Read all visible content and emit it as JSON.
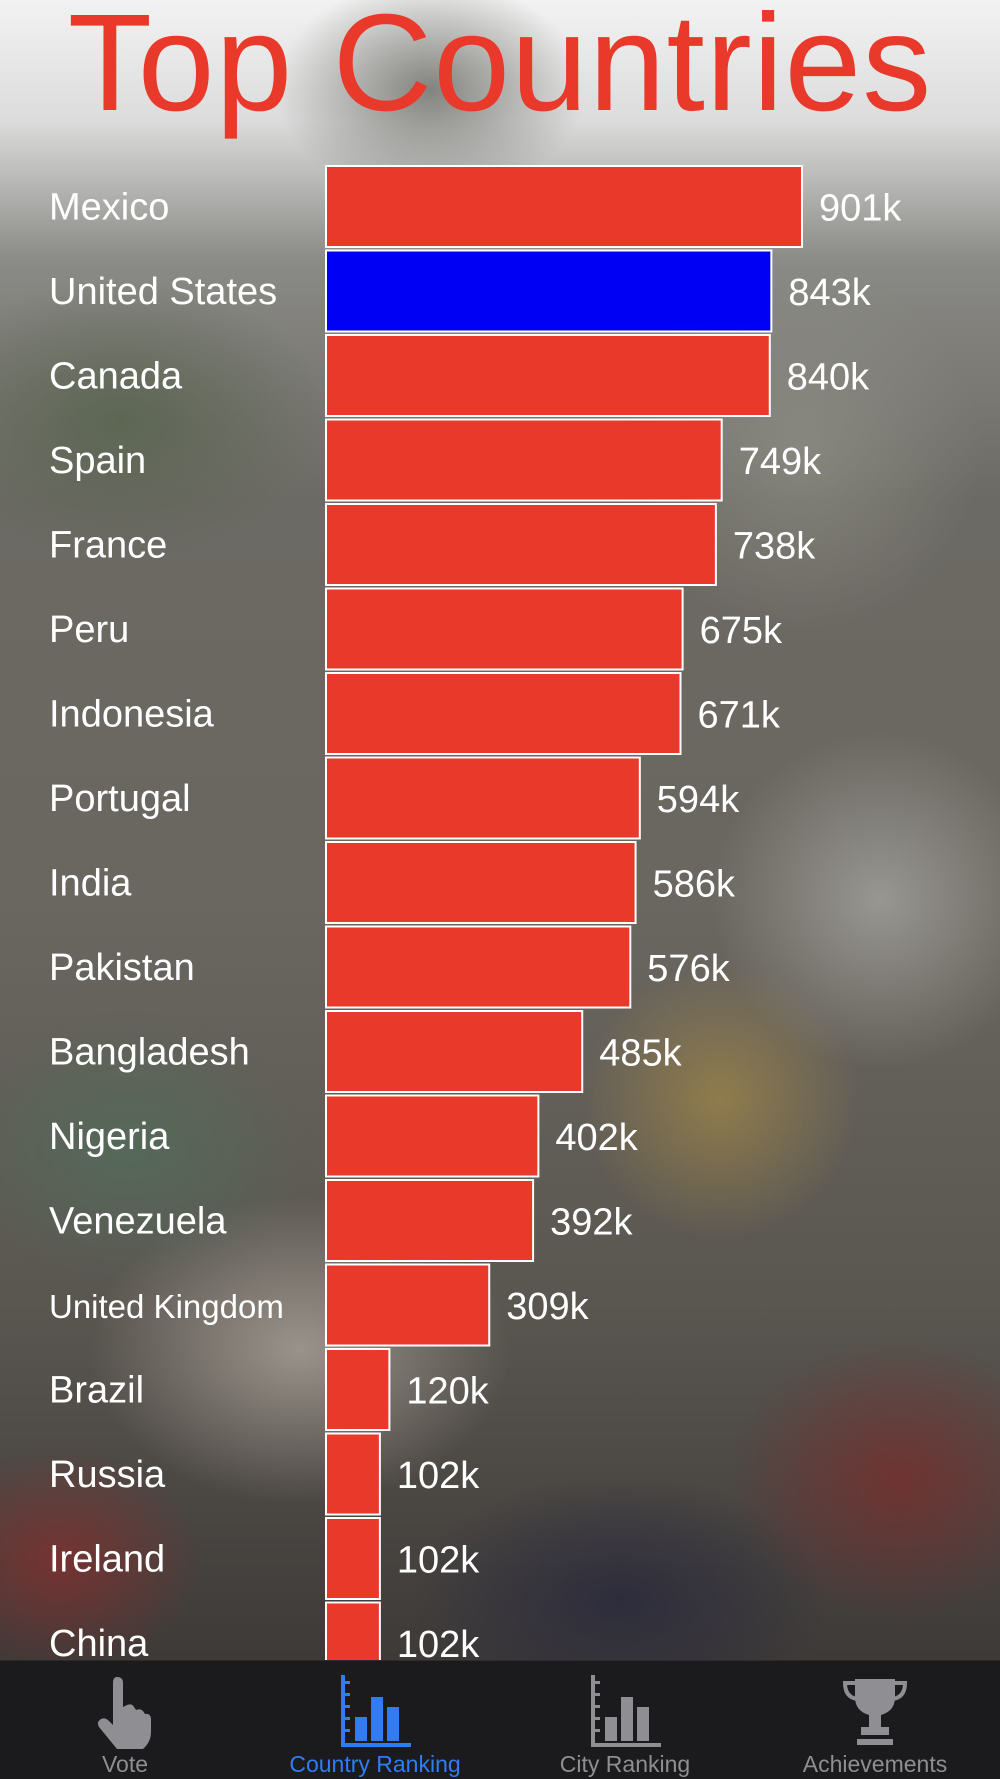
{
  "chart_data": {
    "type": "bar",
    "orientation": "horizontal",
    "title": "Top Countries",
    "categories": [
      "Mexico",
      "United States",
      "Canada",
      "Spain",
      "France",
      "Peru",
      "Indonesia",
      "Portugal",
      "India",
      "Pakistan",
      "Bangladesh",
      "Nigeria",
      "Venezuela",
      "United Kingdom",
      "Brazil",
      "Russia",
      "Ireland",
      "China"
    ],
    "values": [
      901000,
      843000,
      840000,
      749000,
      738000,
      675000,
      671000,
      594000,
      586000,
      576000,
      485000,
      402000,
      392000,
      309000,
      120000,
      102000,
      102000,
      102000
    ],
    "value_labels": [
      "901k",
      "843k",
      "840k",
      "749k",
      "738k",
      "675k",
      "671k",
      "594k",
      "586k",
      "576k",
      "485k",
      "402k",
      "392k",
      "309k",
      "120k",
      "102k",
      "102k",
      "102k"
    ],
    "highlight_category": "United States",
    "colors": {
      "bar": "#e8392a",
      "highlight": "#0000f5",
      "title": "#e8392a",
      "bar_border": "#ffffff"
    },
    "xlim": [
      0,
      901000
    ],
    "grid": false
  },
  "tabbar": {
    "tabs": [
      {
        "label": "Vote",
        "icon": "pointing-hand-icon",
        "active": false
      },
      {
        "label": "Country Ranking",
        "icon": "bar-chart-icon",
        "active": true
      },
      {
        "label": "City Ranking",
        "icon": "bar-chart-icon",
        "active": false
      },
      {
        "label": "Achievements",
        "icon": "trophy-icon",
        "active": false
      }
    ],
    "active_color": "#2f7cf6",
    "inactive_color": "#8e8e93"
  }
}
